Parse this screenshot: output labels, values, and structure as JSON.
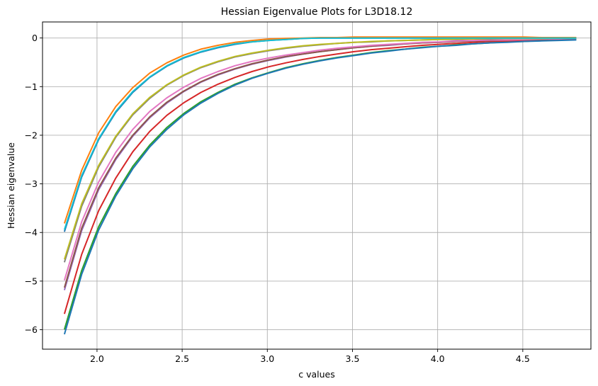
{
  "chart_data": {
    "type": "line",
    "title": "Hessian Eigenvalue Plots for L3D18.12",
    "xlabel": "c values",
    "ylabel": "Hessian eigenvalue",
    "xlim": [
      1.68,
      4.9
    ],
    "ylim": [
      -6.4,
      0.33
    ],
    "xticks": [
      2.0,
      2.5,
      3.0,
      3.5,
      4.0,
      4.5
    ],
    "xtick_labels": [
      "2.0",
      "2.5",
      "3.0",
      "3.5",
      "4.0",
      "4.5"
    ],
    "yticks": [
      0,
      -1,
      -2,
      -3,
      -4,
      -5,
      -6
    ],
    "ytick_labels": [
      "0",
      "−1",
      "−2",
      "−3",
      "−4",
      "−5",
      "−6"
    ],
    "grid": true,
    "x": [
      1.81,
      1.91,
      2.01,
      2.11,
      2.21,
      2.31,
      2.41,
      2.51,
      2.61,
      2.71,
      2.81,
      2.91,
      3.01,
      3.11,
      3.21,
      3.31,
      3.41,
      3.51,
      3.61,
      3.71,
      3.81,
      3.91,
      4.01,
      4.11,
      4.21,
      4.31,
      4.41,
      4.51,
      4.61,
      4.71,
      4.81
    ],
    "series": [
      {
        "color": "#1f77b4",
        "values": [
          -3.97,
          -2.86,
          -2.09,
          -1.53,
          -1.12,
          -0.81,
          -0.58,
          -0.41,
          -0.29,
          -0.2,
          -0.13,
          -0.08,
          -0.05,
          -0.03,
          -0.01,
          0.0,
          0.0,
          0.0,
          0.0,
          0.0,
          0.0,
          0.0,
          0.0,
          0.0,
          0.0,
          0.0,
          0.0,
          0.0,
          0.0,
          0.0,
          0.0
        ]
      },
      {
        "color": "#ff7f0e",
        "values": [
          -3.8,
          -2.72,
          -1.95,
          -1.41,
          -1.02,
          -0.72,
          -0.51,
          -0.35,
          -0.23,
          -0.15,
          -0.09,
          -0.05,
          -0.02,
          -0.01,
          0.0,
          0.01,
          0.01,
          0.02,
          0.02,
          0.02,
          0.02,
          0.02,
          0.02,
          0.02,
          0.02,
          0.02,
          0.02,
          0.02,
          0.01,
          0.01,
          0.01
        ]
      },
      {
        "color": "#2ca02c",
        "values": [
          -5.98,
          -4.78,
          -3.88,
          -3.2,
          -2.64,
          -2.2,
          -1.84,
          -1.55,
          -1.31,
          -1.12,
          -0.95,
          -0.82,
          -0.71,
          -0.61,
          -0.53,
          -0.46,
          -0.4,
          -0.35,
          -0.3,
          -0.26,
          -0.23,
          -0.19,
          -0.17,
          -0.14,
          -0.12,
          -0.1,
          -0.08,
          -0.07,
          -0.05,
          -0.04,
          -0.03
        ]
      },
      {
        "color": "#d62728",
        "values": [
          -5.66,
          -4.45,
          -3.55,
          -2.88,
          -2.34,
          -1.92,
          -1.59,
          -1.33,
          -1.12,
          -0.95,
          -0.81,
          -0.69,
          -0.59,
          -0.51,
          -0.44,
          -0.38,
          -0.33,
          -0.28,
          -0.24,
          -0.21,
          -0.18,
          -0.15,
          -0.13,
          -0.11,
          -0.09,
          -0.07,
          -0.06,
          -0.05,
          -0.04,
          -0.03,
          -0.02
        ]
      },
      {
        "color": "#9467bd",
        "values": [
          -5.17,
          -3.96,
          -3.12,
          -2.5,
          -2.02,
          -1.64,
          -1.34,
          -1.1,
          -0.91,
          -0.76,
          -0.64,
          -0.54,
          -0.46,
          -0.39,
          -0.33,
          -0.28,
          -0.24,
          -0.2,
          -0.17,
          -0.15,
          -0.12,
          -0.1,
          -0.09,
          -0.07,
          -0.06,
          -0.05,
          -0.04,
          -0.03,
          -0.03,
          -0.02,
          -0.02
        ]
      },
      {
        "color": "#8c564b",
        "values": [
          -5.12,
          -3.91,
          -3.08,
          -2.47,
          -2.0,
          -1.62,
          -1.32,
          -1.09,
          -0.9,
          -0.75,
          -0.63,
          -0.53,
          -0.45,
          -0.38,
          -0.33,
          -0.28,
          -0.24,
          -0.2,
          -0.17,
          -0.14,
          -0.12,
          -0.1,
          -0.09,
          -0.07,
          -0.06,
          -0.05,
          -0.04,
          -0.03,
          -0.03,
          -0.02,
          -0.02
        ]
      },
      {
        "color": "#e377c2",
        "values": [
          -4.97,
          -3.78,
          -2.96,
          -2.35,
          -1.88,
          -1.51,
          -1.23,
          -1.01,
          -0.83,
          -0.69,
          -0.57,
          -0.48,
          -0.41,
          -0.35,
          -0.3,
          -0.25,
          -0.21,
          -0.18,
          -0.15,
          -0.13,
          -0.11,
          -0.09,
          -0.08,
          -0.06,
          -0.05,
          -0.04,
          -0.04,
          -0.03,
          -0.02,
          -0.02,
          -0.01
        ]
      },
      {
        "color": "#7f7f7f",
        "values": [
          -4.6,
          -3.46,
          -2.65,
          -2.04,
          -1.58,
          -1.24,
          -0.97,
          -0.77,
          -0.61,
          -0.49,
          -0.39,
          -0.32,
          -0.26,
          -0.21,
          -0.17,
          -0.14,
          -0.11,
          -0.09,
          -0.08,
          -0.06,
          -0.05,
          -0.04,
          -0.03,
          -0.03,
          -0.02,
          -0.02,
          -0.01,
          -0.01,
          -0.01,
          -0.01,
          -0.01
        ]
      },
      {
        "color": "#bcbd22",
        "values": [
          -4.54,
          -3.41,
          -2.62,
          -2.02,
          -1.56,
          -1.22,
          -0.96,
          -0.76,
          -0.6,
          -0.48,
          -0.38,
          -0.31,
          -0.25,
          -0.2,
          -0.16,
          -0.13,
          -0.11,
          -0.09,
          -0.07,
          -0.06,
          -0.05,
          -0.04,
          -0.03,
          -0.02,
          -0.02,
          -0.01,
          -0.01,
          -0.01,
          -0.01,
          0.0,
          0.0
        ]
      },
      {
        "color": "#17becf",
        "values": [
          -3.93,
          -2.83,
          -2.07,
          -1.51,
          -1.1,
          -0.8,
          -0.57,
          -0.4,
          -0.28,
          -0.19,
          -0.12,
          -0.08,
          -0.05,
          -0.03,
          -0.01,
          0.0,
          0.0,
          0.0,
          0.0,
          0.0,
          0.0,
          0.0,
          0.0,
          0.0,
          0.0,
          0.0,
          0.0,
          0.0,
          0.0,
          0.0,
          0.0
        ]
      },
      {
        "color": "#1f77b4",
        "values": [
          -6.08,
          -4.86,
          -3.95,
          -3.25,
          -2.69,
          -2.24,
          -1.88,
          -1.58,
          -1.34,
          -1.14,
          -0.97,
          -0.83,
          -0.72,
          -0.62,
          -0.54,
          -0.47,
          -0.41,
          -0.36,
          -0.31,
          -0.27,
          -0.23,
          -0.2,
          -0.17,
          -0.15,
          -0.12,
          -0.1,
          -0.09,
          -0.07,
          -0.06,
          -0.05,
          -0.04
        ]
      }
    ]
  }
}
